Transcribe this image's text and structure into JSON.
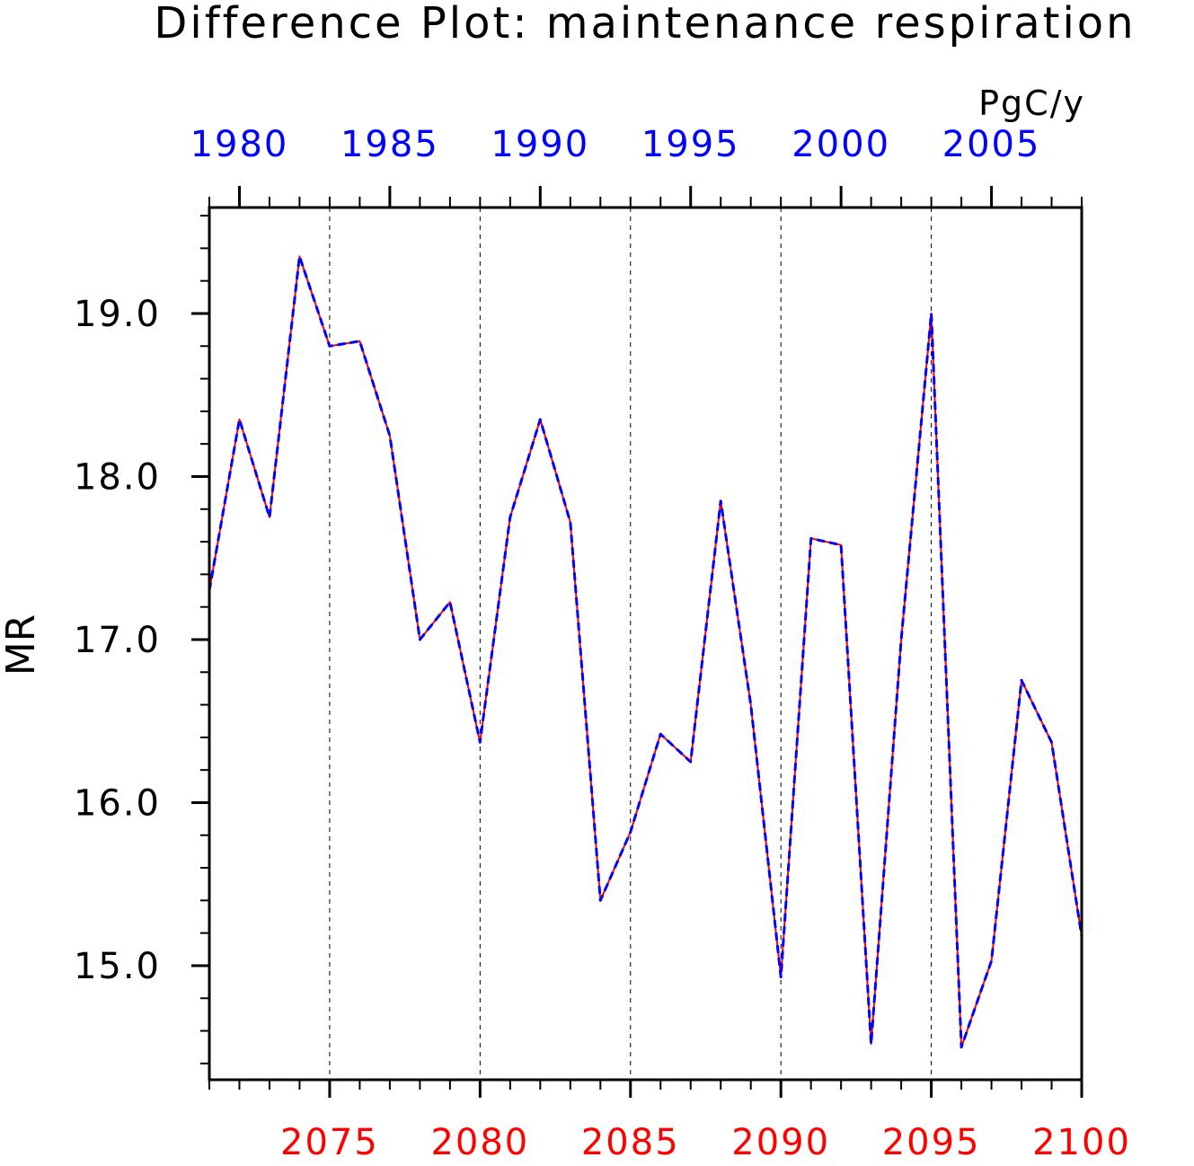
{
  "title": "Difference Plot: maintenance respiration",
  "colors": {
    "background": "#ffffff",
    "axis": "#000000",
    "top_axis_labels": "#0000ff",
    "bottom_axis_labels": "#ff0000",
    "series_blue": "#0000ff",
    "series_red": "#ff0000",
    "gridline": "#000000"
  },
  "chart_data": {
    "type": "line",
    "title": "Difference Plot: maintenance respiration",
    "units": "PgC/y",
    "ylabel": "MR",
    "ylim": [
      14.3,
      19.65
    ],
    "yticks": [
      15.0,
      16.0,
      17.0,
      18.0,
      19.0
    ],
    "ytick_labels": [
      "15.0",
      "16.0",
      "17.0",
      "18.0",
      "19.0"
    ],
    "y_minor_step": 0.2,
    "bottom_axis": {
      "range": [
        2071,
        2100
      ],
      "ticks": [
        2075,
        2080,
        2085,
        2090,
        2095,
        2100
      ],
      "tick_labels": [
        "2075",
        "2080",
        "2085",
        "2090",
        "2095",
        "2100"
      ]
    },
    "top_axis": {
      "range": [
        1979,
        2008
      ],
      "ticks": [
        1980,
        1985,
        1990,
        1995,
        2000,
        2005
      ],
      "tick_labels": [
        "1980",
        "1985",
        "1990",
        "1995",
        "2000",
        "2005"
      ]
    },
    "grid": "vertical dashed at major bottom ticks",
    "series": [
      {
        "color": "red",
        "style": "solid",
        "x": [
          2071,
          2072,
          2073,
          2074,
          2075,
          2076,
          2077,
          2078,
          2079,
          2080,
          2081,
          2082,
          2083,
          2084,
          2085,
          2086,
          2087,
          2088,
          2089,
          2090,
          2091,
          2092,
          2093,
          2094,
          2095,
          2096,
          2097,
          2098,
          2099,
          2100
        ],
        "values": [
          17.3,
          18.35,
          17.75,
          19.35,
          18.8,
          18.83,
          18.25,
          17.0,
          17.23,
          16.37,
          17.75,
          18.35,
          17.72,
          15.4,
          15.82,
          16.42,
          16.25,
          17.85,
          16.6,
          14.93,
          17.62,
          17.58,
          14.52,
          17.0,
          19.0,
          14.5,
          15.03,
          16.75,
          16.37,
          15.18
        ]
      },
      {
        "color": "blue",
        "style": "dashed",
        "x": [
          2071,
          2072,
          2073,
          2074,
          2075,
          2076,
          2077,
          2078,
          2079,
          2080,
          2081,
          2082,
          2083,
          2084,
          2085,
          2086,
          2087,
          2088,
          2089,
          2090,
          2091,
          2092,
          2093,
          2094,
          2095,
          2096,
          2097,
          2098,
          2099,
          2100
        ],
        "values": [
          17.3,
          18.35,
          17.75,
          19.35,
          18.8,
          18.83,
          18.25,
          17.0,
          17.23,
          16.37,
          17.75,
          18.35,
          17.72,
          15.4,
          15.82,
          16.42,
          16.25,
          17.85,
          16.6,
          14.93,
          17.62,
          17.58,
          14.52,
          17.0,
          19.0,
          14.5,
          15.03,
          16.75,
          16.37,
          15.18
        ]
      }
    ]
  }
}
